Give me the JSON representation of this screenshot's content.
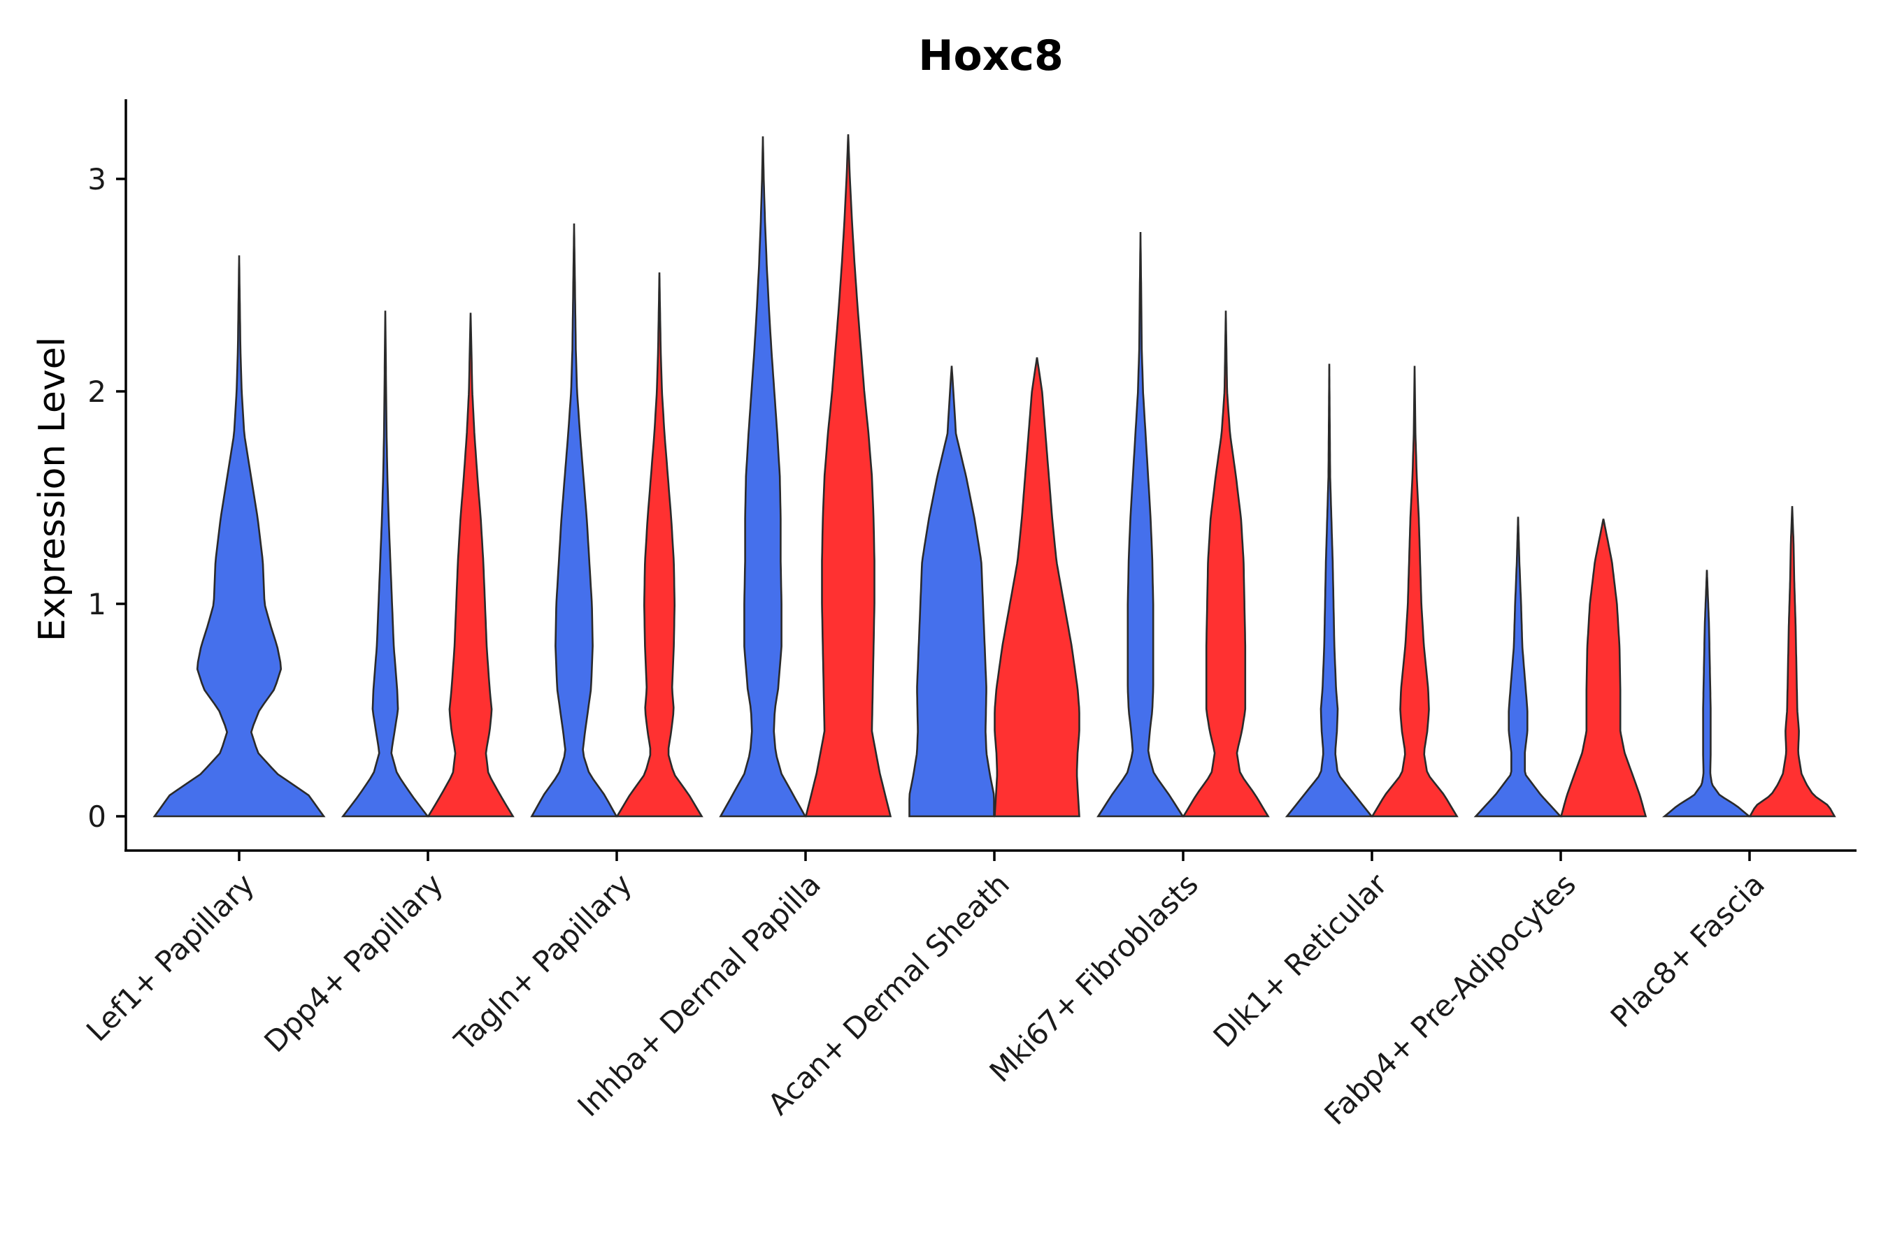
{
  "chart_data": {
    "type": "violin",
    "title": "Hoxc8",
    "xlabel": "",
    "ylabel": "Expression Level",
    "ylim": [
      -0.16,
      3.38
    ],
    "yticks": [
      0,
      1,
      2,
      3
    ],
    "grid": false,
    "legend": "none",
    "categories": [
      "Lef1+ Papillary",
      "Dpp4+ Papillary",
      "Tagln+ Papillary",
      "Inhba+ Dermal Papilla",
      "Acan+ Dermal Sheath",
      "Mki67+ Fibroblasts",
      "Dlk1+ Reticular",
      "Fabp4+ Pre-Adipocytes",
      "Plac8+ Fascia"
    ],
    "colors": {
      "group_a": "#4570EC",
      "group_b": "#FF3131"
    },
    "violins": [
      {
        "category": "Lef1+ Papillary",
        "group": "a",
        "max": 2.64,
        "profile": [
          [
            0,
            1.0
          ],
          [
            0.1,
            0.82
          ],
          [
            0.2,
            0.45
          ],
          [
            0.3,
            0.22
          ],
          [
            0.4,
            0.14
          ],
          [
            0.5,
            0.24
          ],
          [
            0.6,
            0.42
          ],
          [
            0.7,
            0.5
          ],
          [
            0.8,
            0.45
          ],
          [
            0.9,
            0.37
          ],
          [
            1.0,
            0.3
          ],
          [
            1.2,
            0.28
          ],
          [
            1.4,
            0.22
          ],
          [
            1.6,
            0.14
          ],
          [
            1.8,
            0.06
          ],
          [
            2.0,
            0.03
          ],
          [
            2.2,
            0.015
          ],
          [
            2.64,
            0.0
          ]
        ]
      },
      {
        "category": "Dpp4+ Papillary",
        "group": "a",
        "max": 2.38,
        "profile": [
          [
            0,
            1.0
          ],
          [
            0.1,
            0.62
          ],
          [
            0.2,
            0.28
          ],
          [
            0.3,
            0.14
          ],
          [
            0.4,
            0.22
          ],
          [
            0.5,
            0.3
          ],
          [
            0.6,
            0.28
          ],
          [
            0.8,
            0.2
          ],
          [
            1.0,
            0.16
          ],
          [
            1.2,
            0.12
          ],
          [
            1.4,
            0.08
          ],
          [
            1.6,
            0.05
          ],
          [
            1.8,
            0.03
          ],
          [
            2.0,
            0.02
          ],
          [
            2.38,
            0.0
          ]
        ]
      },
      {
        "category": "Dpp4+ Papillary",
        "group": "b",
        "max": 2.37,
        "profile": [
          [
            0,
            1.0
          ],
          [
            0.1,
            0.7
          ],
          [
            0.2,
            0.42
          ],
          [
            0.3,
            0.36
          ],
          [
            0.4,
            0.45
          ],
          [
            0.5,
            0.5
          ],
          [
            0.6,
            0.45
          ],
          [
            0.8,
            0.38
          ],
          [
            1.0,
            0.34
          ],
          [
            1.2,
            0.3
          ],
          [
            1.4,
            0.24
          ],
          [
            1.6,
            0.16
          ],
          [
            1.8,
            0.09
          ],
          [
            2.0,
            0.04
          ],
          [
            2.37,
            0.0
          ]
        ]
      },
      {
        "category": "Tagln+ Papillary",
        "group": "a",
        "max": 2.79,
        "profile": [
          [
            0,
            1.0
          ],
          [
            0.1,
            0.72
          ],
          [
            0.2,
            0.36
          ],
          [
            0.3,
            0.2
          ],
          [
            0.4,
            0.26
          ],
          [
            0.6,
            0.4
          ],
          [
            0.8,
            0.44
          ],
          [
            1.0,
            0.42
          ],
          [
            1.2,
            0.36
          ],
          [
            1.4,
            0.3
          ],
          [
            1.6,
            0.22
          ],
          [
            1.8,
            0.14
          ],
          [
            2.0,
            0.07
          ],
          [
            2.2,
            0.04
          ],
          [
            2.5,
            0.02
          ],
          [
            2.79,
            0.0
          ]
        ]
      },
      {
        "category": "Tagln+ Papillary",
        "group": "b",
        "max": 2.56,
        "profile": [
          [
            0,
            1.0
          ],
          [
            0.1,
            0.7
          ],
          [
            0.2,
            0.34
          ],
          [
            0.3,
            0.2
          ],
          [
            0.4,
            0.28
          ],
          [
            0.5,
            0.34
          ],
          [
            0.6,
            0.3
          ],
          [
            0.8,
            0.34
          ],
          [
            1.0,
            0.36
          ],
          [
            1.2,
            0.34
          ],
          [
            1.4,
            0.28
          ],
          [
            1.6,
            0.2
          ],
          [
            1.8,
            0.12
          ],
          [
            2.0,
            0.06
          ],
          [
            2.2,
            0.03
          ],
          [
            2.56,
            0.0
          ]
        ]
      },
      {
        "category": "Inhba+ Dermal Papilla",
        "group": "a",
        "max": 3.2,
        "profile": [
          [
            0,
            1.0
          ],
          [
            0.1,
            0.72
          ],
          [
            0.2,
            0.44
          ],
          [
            0.3,
            0.3
          ],
          [
            0.4,
            0.26
          ],
          [
            0.5,
            0.28
          ],
          [
            0.6,
            0.36
          ],
          [
            0.8,
            0.44
          ],
          [
            1.0,
            0.44
          ],
          [
            1.2,
            0.42
          ],
          [
            1.4,
            0.42
          ],
          [
            1.6,
            0.4
          ],
          [
            1.8,
            0.34
          ],
          [
            2.0,
            0.27
          ],
          [
            2.2,
            0.2
          ],
          [
            2.4,
            0.14
          ],
          [
            2.6,
            0.09
          ],
          [
            2.8,
            0.05
          ],
          [
            3.0,
            0.02
          ],
          [
            3.2,
            0.0
          ]
        ]
      },
      {
        "category": "Inhba+ Dermal Papilla",
        "group": "b",
        "max": 3.21,
        "profile": [
          [
            0,
            1.0
          ],
          [
            0.2,
            0.75
          ],
          [
            0.4,
            0.56
          ],
          [
            0.6,
            0.58
          ],
          [
            0.8,
            0.6
          ],
          [
            1.0,
            0.62
          ],
          [
            1.2,
            0.62
          ],
          [
            1.4,
            0.6
          ],
          [
            1.6,
            0.56
          ],
          [
            1.8,
            0.48
          ],
          [
            2.0,
            0.38
          ],
          [
            2.2,
            0.3
          ],
          [
            2.4,
            0.22
          ],
          [
            2.6,
            0.15
          ],
          [
            2.8,
            0.09
          ],
          [
            3.0,
            0.04
          ],
          [
            3.21,
            0.0
          ]
        ]
      },
      {
        "category": "Acan+ Dermal Sheath",
        "group": "a",
        "max": 2.12,
        "profile": [
          [
            0,
            1.0
          ],
          [
            0.1,
            1.0
          ],
          [
            0.2,
            0.9
          ],
          [
            0.3,
            0.82
          ],
          [
            0.4,
            0.8
          ],
          [
            0.6,
            0.82
          ],
          [
            0.8,
            0.78
          ],
          [
            1.0,
            0.74
          ],
          [
            1.2,
            0.7
          ],
          [
            1.4,
            0.54
          ],
          [
            1.6,
            0.34
          ],
          [
            1.8,
            0.1
          ],
          [
            2.0,
            0.04
          ],
          [
            2.12,
            0.0
          ]
        ]
      },
      {
        "category": "Acan+ Dermal Sheath",
        "group": "b",
        "max": 2.16,
        "profile": [
          [
            0,
            1.0
          ],
          [
            0.2,
            0.94
          ],
          [
            0.3,
            0.96
          ],
          [
            0.4,
            1.0
          ],
          [
            0.5,
            1.0
          ],
          [
            0.6,
            0.96
          ],
          [
            0.8,
            0.82
          ],
          [
            1.0,
            0.64
          ],
          [
            1.2,
            0.46
          ],
          [
            1.4,
            0.36
          ],
          [
            1.6,
            0.28
          ],
          [
            1.8,
            0.2
          ],
          [
            2.0,
            0.12
          ],
          [
            2.16,
            0.0
          ]
        ]
      },
      {
        "category": "Mki67+ Fibroblasts",
        "group": "a",
        "max": 2.75,
        "profile": [
          [
            0,
            1.0
          ],
          [
            0.1,
            0.68
          ],
          [
            0.2,
            0.32
          ],
          [
            0.3,
            0.18
          ],
          [
            0.4,
            0.22
          ],
          [
            0.5,
            0.28
          ],
          [
            0.6,
            0.3
          ],
          [
            0.8,
            0.3
          ],
          [
            1.0,
            0.3
          ],
          [
            1.2,
            0.28
          ],
          [
            1.4,
            0.24
          ],
          [
            1.6,
            0.18
          ],
          [
            1.8,
            0.12
          ],
          [
            2.0,
            0.06
          ],
          [
            2.2,
            0.03
          ],
          [
            2.5,
            0.015
          ],
          [
            2.75,
            0.0
          ]
        ]
      },
      {
        "category": "Mki67+ Fibroblasts",
        "group": "b",
        "max": 2.38,
        "profile": [
          [
            0,
            1.0
          ],
          [
            0.1,
            0.7
          ],
          [
            0.2,
            0.34
          ],
          [
            0.3,
            0.26
          ],
          [
            0.4,
            0.38
          ],
          [
            0.5,
            0.46
          ],
          [
            0.6,
            0.46
          ],
          [
            0.8,
            0.46
          ],
          [
            1.0,
            0.44
          ],
          [
            1.2,
            0.42
          ],
          [
            1.4,
            0.36
          ],
          [
            1.6,
            0.24
          ],
          [
            1.8,
            0.1
          ],
          [
            2.0,
            0.03
          ],
          [
            2.38,
            0.0
          ]
        ]
      },
      {
        "category": "Dlk1+ Reticular",
        "group": "a",
        "max": 2.13,
        "profile": [
          [
            0,
            1.0
          ],
          [
            0.1,
            0.6
          ],
          [
            0.2,
            0.2
          ],
          [
            0.3,
            0.14
          ],
          [
            0.4,
            0.18
          ],
          [
            0.5,
            0.2
          ],
          [
            0.6,
            0.16
          ],
          [
            0.8,
            0.12
          ],
          [
            1.0,
            0.1
          ],
          [
            1.2,
            0.08
          ],
          [
            1.4,
            0.05
          ],
          [
            1.6,
            0.02
          ],
          [
            2.13,
            0.0
          ]
        ]
      },
      {
        "category": "Dlk1+ Reticular",
        "group": "b",
        "max": 2.12,
        "profile": [
          [
            0,
            1.0
          ],
          [
            0.1,
            0.7
          ],
          [
            0.2,
            0.3
          ],
          [
            0.3,
            0.22
          ],
          [
            0.4,
            0.3
          ],
          [
            0.5,
            0.34
          ],
          [
            0.6,
            0.32
          ],
          [
            0.8,
            0.22
          ],
          [
            1.0,
            0.16
          ],
          [
            1.2,
            0.13
          ],
          [
            1.4,
            0.1
          ],
          [
            1.6,
            0.05
          ],
          [
            1.8,
            0.02
          ],
          [
            2.12,
            0.0
          ]
        ]
      },
      {
        "category": "Fabp4+ Pre-Adipocytes",
        "group": "a",
        "max": 1.41,
        "profile": [
          [
            0,
            1.0
          ],
          [
            0.1,
            0.54
          ],
          [
            0.2,
            0.16
          ],
          [
            0.3,
            0.16
          ],
          [
            0.4,
            0.22
          ],
          [
            0.5,
            0.22
          ],
          [
            0.6,
            0.18
          ],
          [
            0.8,
            0.1
          ],
          [
            1.0,
            0.07
          ],
          [
            1.2,
            0.03
          ],
          [
            1.41,
            0.0
          ]
        ]
      },
      {
        "category": "Fabp4+ Pre-Adipocytes",
        "group": "b",
        "max": 1.4,
        "profile": [
          [
            0,
            1.0
          ],
          [
            0.1,
            0.86
          ],
          [
            0.2,
            0.68
          ],
          [
            0.3,
            0.5
          ],
          [
            0.4,
            0.4
          ],
          [
            0.6,
            0.4
          ],
          [
            0.8,
            0.38
          ],
          [
            1.0,
            0.32
          ],
          [
            1.2,
            0.2
          ],
          [
            1.3,
            0.1
          ],
          [
            1.4,
            0.0
          ]
        ]
      },
      {
        "category": "Plac8+ Fascia",
        "group": "a",
        "max": 1.16,
        "profile": [
          [
            0,
            1.0
          ],
          [
            0.05,
            0.7
          ],
          [
            0.1,
            0.3
          ],
          [
            0.15,
            0.12
          ],
          [
            0.2,
            0.08
          ],
          [
            0.3,
            0.09
          ],
          [
            0.5,
            0.09
          ],
          [
            0.7,
            0.07
          ],
          [
            0.9,
            0.05
          ],
          [
            1.16,
            0.0
          ]
        ]
      },
      {
        "category": "Plac8+ Fascia",
        "group": "b",
        "max": 1.46,
        "profile": [
          [
            0,
            1.0
          ],
          [
            0.05,
            0.86
          ],
          [
            0.1,
            0.5
          ],
          [
            0.15,
            0.34
          ],
          [
            0.2,
            0.22
          ],
          [
            0.3,
            0.14
          ],
          [
            0.4,
            0.16
          ],
          [
            0.5,
            0.12
          ],
          [
            0.7,
            0.1
          ],
          [
            0.9,
            0.08
          ],
          [
            1.1,
            0.05
          ],
          [
            1.3,
            0.03
          ],
          [
            1.46,
            0.0
          ]
        ]
      }
    ]
  }
}
